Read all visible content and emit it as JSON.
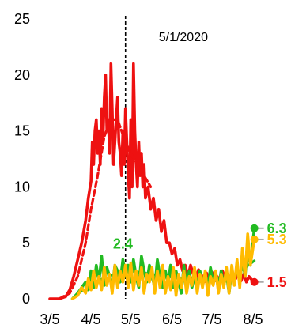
{
  "chart_data": {
    "type": "line",
    "title": "",
    "xlabel": "",
    "ylabel": "",
    "xlim": [
      "2020-03-05",
      "2020-08-08"
    ],
    "ylim": [
      0,
      25
    ],
    "grid": false,
    "legend": "none",
    "x_ticks": [
      {
        "date": "2020-03-05",
        "label": "3/5"
      },
      {
        "date": "2020-04-05",
        "label": "4/5"
      },
      {
        "date": "2020-05-05",
        "label": "5/5"
      },
      {
        "date": "2020-06-05",
        "label": "6/5"
      },
      {
        "date": "2020-07-05",
        "label": "7/5"
      },
      {
        "date": "2020-08-05",
        "label": "8/5"
      }
    ],
    "y_ticks": [
      0,
      5,
      10,
      15,
      20,
      25
    ],
    "marker_line": {
      "date": "2020-05-01",
      "label": "5/1/2020",
      "style": "dashed"
    },
    "annotations": [
      {
        "text": "2.4",
        "date": "2020-04-29",
        "y": 4.5,
        "color": "#22bb22"
      }
    ],
    "series": [
      {
        "color": "#ee1111",
        "style": "solid",
        "end_label": "1.5",
        "x": [
          "2020-03-05",
          "2020-03-12",
          "2020-03-17",
          "2020-03-20",
          "2020-03-23",
          "2020-03-26",
          "2020-03-29",
          "2020-04-01",
          "2020-04-03",
          "2020-04-05",
          "2020-04-06",
          "2020-04-07",
          "2020-04-08",
          "2020-04-09",
          "2020-04-10",
          "2020-04-11",
          "2020-04-12",
          "2020-04-13",
          "2020-04-14",
          "2020-04-15",
          "2020-04-16",
          "2020-04-17",
          "2020-04-18",
          "2020-04-19",
          "2020-04-20",
          "2020-04-21",
          "2020-04-22",
          "2020-04-23",
          "2020-04-24",
          "2020-04-25",
          "2020-04-26",
          "2020-04-27",
          "2020-04-28",
          "2020-04-29",
          "2020-04-30",
          "2020-05-01",
          "2020-05-02",
          "2020-05-03",
          "2020-05-04",
          "2020-05-05",
          "2020-05-06",
          "2020-05-07",
          "2020-05-08",
          "2020-05-09",
          "2020-05-10",
          "2020-05-11",
          "2020-05-12",
          "2020-05-13",
          "2020-05-14",
          "2020-05-15",
          "2020-05-16",
          "2020-05-18",
          "2020-05-20",
          "2020-05-22",
          "2020-05-24",
          "2020-05-26",
          "2020-05-28",
          "2020-05-30",
          "2020-06-01",
          "2020-06-03",
          "2020-06-05",
          "2020-06-07",
          "2020-06-09",
          "2020-06-11",
          "2020-06-13",
          "2020-06-15",
          "2020-06-17",
          "2020-06-19",
          "2020-06-21",
          "2020-06-23",
          "2020-06-25",
          "2020-06-27",
          "2020-06-29",
          "2020-07-01",
          "2020-07-03",
          "2020-07-05",
          "2020-07-07",
          "2020-07-09",
          "2020-07-11",
          "2020-07-13",
          "2020-07-15",
          "2020-07-17",
          "2020-07-19",
          "2020-07-21",
          "2020-07-23",
          "2020-07-25",
          "2020-07-27",
          "2020-07-29",
          "2020-07-31",
          "2020-08-02",
          "2020-08-04",
          "2020-08-06"
        ],
        "values": [
          0,
          0,
          0.2,
          0.8,
          2,
          3.5,
          5,
          7,
          9,
          10.5,
          14,
          12,
          15,
          16,
          13,
          15,
          12,
          17,
          14,
          18,
          20,
          15,
          16,
          13,
          21,
          17,
          12,
          14,
          16,
          18,
          14,
          13,
          11,
          15,
          12,
          17,
          14,
          11,
          9,
          16,
          10,
          21,
          15,
          12,
          10,
          14,
          11,
          13,
          10,
          12,
          9,
          10,
          8,
          9,
          7,
          8,
          6,
          7,
          5,
          5,
          4,
          4.5,
          3,
          3.5,
          2.5,
          3,
          2,
          3,
          2.2,
          1.8,
          2.6,
          2.2,
          1.5,
          2.3,
          1.8,
          2.4,
          1.6,
          2,
          1.5,
          2.5,
          1.8,
          2.2,
          1.5,
          2,
          1.8,
          2.5,
          1.6,
          2.2,
          1.5,
          2,
          1.7,
          1.5
        ]
      },
      {
        "color": "#ee1111",
        "style": "dashed",
        "end_label": "",
        "x": [
          "2020-03-12",
          "2020-03-20",
          "2020-03-26",
          "2020-04-01",
          "2020-04-05",
          "2020-04-10",
          "2020-04-15",
          "2020-04-20",
          "2020-04-25",
          "2020-05-01",
          "2020-05-05",
          "2020-05-10",
          "2020-05-15",
          "2020-05-20"
        ],
        "values": [
          0,
          0.5,
          2,
          5,
          8,
          11,
          14.5,
          16,
          16,
          14,
          13,
          12,
          11,
          10
        ]
      },
      {
        "color": "#22bb22",
        "style": "solid",
        "end_label": "6.3",
        "x": [
          "2020-03-22",
          "2020-03-26",
          "2020-03-29",
          "2020-04-01",
          "2020-04-03",
          "2020-04-05",
          "2020-04-07",
          "2020-04-09",
          "2020-04-11",
          "2020-04-13",
          "2020-04-15",
          "2020-04-17",
          "2020-04-19",
          "2020-04-21",
          "2020-04-23",
          "2020-04-25",
          "2020-04-27",
          "2020-04-29",
          "2020-05-01",
          "2020-05-03",
          "2020-05-05",
          "2020-05-07",
          "2020-05-09",
          "2020-05-11",
          "2020-05-13",
          "2020-05-15",
          "2020-05-17",
          "2020-05-19",
          "2020-05-21",
          "2020-05-23",
          "2020-05-25",
          "2020-05-27",
          "2020-05-29",
          "2020-05-31",
          "2020-06-02",
          "2020-06-04",
          "2020-06-06",
          "2020-06-08",
          "2020-06-10",
          "2020-06-12",
          "2020-06-14",
          "2020-06-16",
          "2020-06-18",
          "2020-06-20",
          "2020-06-22",
          "2020-06-24",
          "2020-06-26",
          "2020-06-28",
          "2020-06-30",
          "2020-07-02",
          "2020-07-04",
          "2020-07-06",
          "2020-07-08",
          "2020-07-10",
          "2020-07-12",
          "2020-07-14",
          "2020-07-16",
          "2020-07-18",
          "2020-07-20",
          "2020-07-22",
          "2020-07-24",
          "2020-07-26",
          "2020-07-28",
          "2020-07-30",
          "2020-08-01",
          "2020-08-03",
          "2020-08-06"
        ],
        "values": [
          0,
          0.5,
          1,
          1.5,
          0.8,
          2.5,
          1,
          3,
          1.5,
          3.8,
          1.2,
          2.8,
          2,
          1,
          3,
          2.5,
          1.5,
          3.5,
          2,
          3,
          1.5,
          3.5,
          2,
          1,
          3.8,
          2.5,
          1.5,
          3,
          2,
          1,
          3.5,
          2,
          1,
          2.5,
          1.5,
          3,
          1,
          2.5,
          1.5,
          0.5,
          3,
          1,
          2.5,
          1,
          2,
          0.8,
          2.5,
          1.5,
          2,
          1,
          2.8,
          1.5,
          2,
          1,
          2.5,
          1.2,
          2.2,
          0.5,
          2.5,
          1.5,
          3,
          1.5,
          3.5,
          2,
          4.5,
          3,
          6.3
        ]
      },
      {
        "color": "#22bb22",
        "style": "dashed",
        "end_label": "",
        "x": [
          "2020-03-22",
          "2020-04-01",
          "2020-04-10",
          "2020-04-20",
          "2020-04-29",
          "2020-05-10",
          "2020-05-20",
          "2020-06-01",
          "2020-06-10",
          "2020-06-20",
          "2020-07-01",
          "2020-07-10",
          "2020-07-20",
          "2020-07-28",
          "2020-08-06"
        ],
        "values": [
          0,
          1,
          1.6,
          2.1,
          2.4,
          2.4,
          2.2,
          2,
          1.8,
          1.7,
          1.7,
          1.8,
          2,
          2.6,
          3.4
        ]
      },
      {
        "color": "#ffbb00",
        "style": "solid",
        "end_label": "5.3",
        "x": [
          "2020-03-22",
          "2020-03-26",
          "2020-03-29",
          "2020-04-01",
          "2020-04-03",
          "2020-04-05",
          "2020-04-07",
          "2020-04-09",
          "2020-04-11",
          "2020-04-13",
          "2020-04-15",
          "2020-04-17",
          "2020-04-19",
          "2020-04-21",
          "2020-04-23",
          "2020-04-25",
          "2020-04-27",
          "2020-04-29",
          "2020-05-01",
          "2020-05-03",
          "2020-05-05",
          "2020-05-07",
          "2020-05-09",
          "2020-05-11",
          "2020-05-13",
          "2020-05-15",
          "2020-05-17",
          "2020-05-19",
          "2020-05-21",
          "2020-05-23",
          "2020-05-25",
          "2020-05-27",
          "2020-05-29",
          "2020-05-31",
          "2020-06-02",
          "2020-06-04",
          "2020-06-06",
          "2020-06-08",
          "2020-06-10",
          "2020-06-12",
          "2020-06-14",
          "2020-06-16",
          "2020-06-18",
          "2020-06-20",
          "2020-06-22",
          "2020-06-24",
          "2020-06-26",
          "2020-06-28",
          "2020-06-30",
          "2020-07-02",
          "2020-07-04",
          "2020-07-06",
          "2020-07-08",
          "2020-07-10",
          "2020-07-12",
          "2020-07-14",
          "2020-07-16",
          "2020-07-18",
          "2020-07-20",
          "2020-07-22",
          "2020-07-24",
          "2020-07-26",
          "2020-07-28",
          "2020-07-30",
          "2020-08-01",
          "2020-08-03",
          "2020-08-06"
        ],
        "values": [
          0,
          0.3,
          1,
          0.5,
          1.8,
          0.8,
          2.5,
          1,
          2,
          0.8,
          2.8,
          1.2,
          2.2,
          0.5,
          3,
          1,
          2.5,
          1.5,
          3,
          1,
          3.2,
          0.8,
          2.5,
          1.2,
          2.8,
          0.5,
          2.2,
          1.5,
          2.8,
          0.5,
          2.5,
          1,
          3,
          0.5,
          2,
          0.8,
          2.8,
          0.3,
          2.2,
          1,
          2.5,
          0.5,
          2,
          1.2,
          2.8,
          0.5,
          2.2,
          1,
          2.5,
          0.3,
          2,
          1.2,
          2.5,
          0.5,
          2.2,
          1,
          2.8,
          0.5,
          3,
          1.2,
          3.5,
          1,
          4.5,
          2,
          5.8,
          3,
          5.3
        ]
      }
    ]
  }
}
